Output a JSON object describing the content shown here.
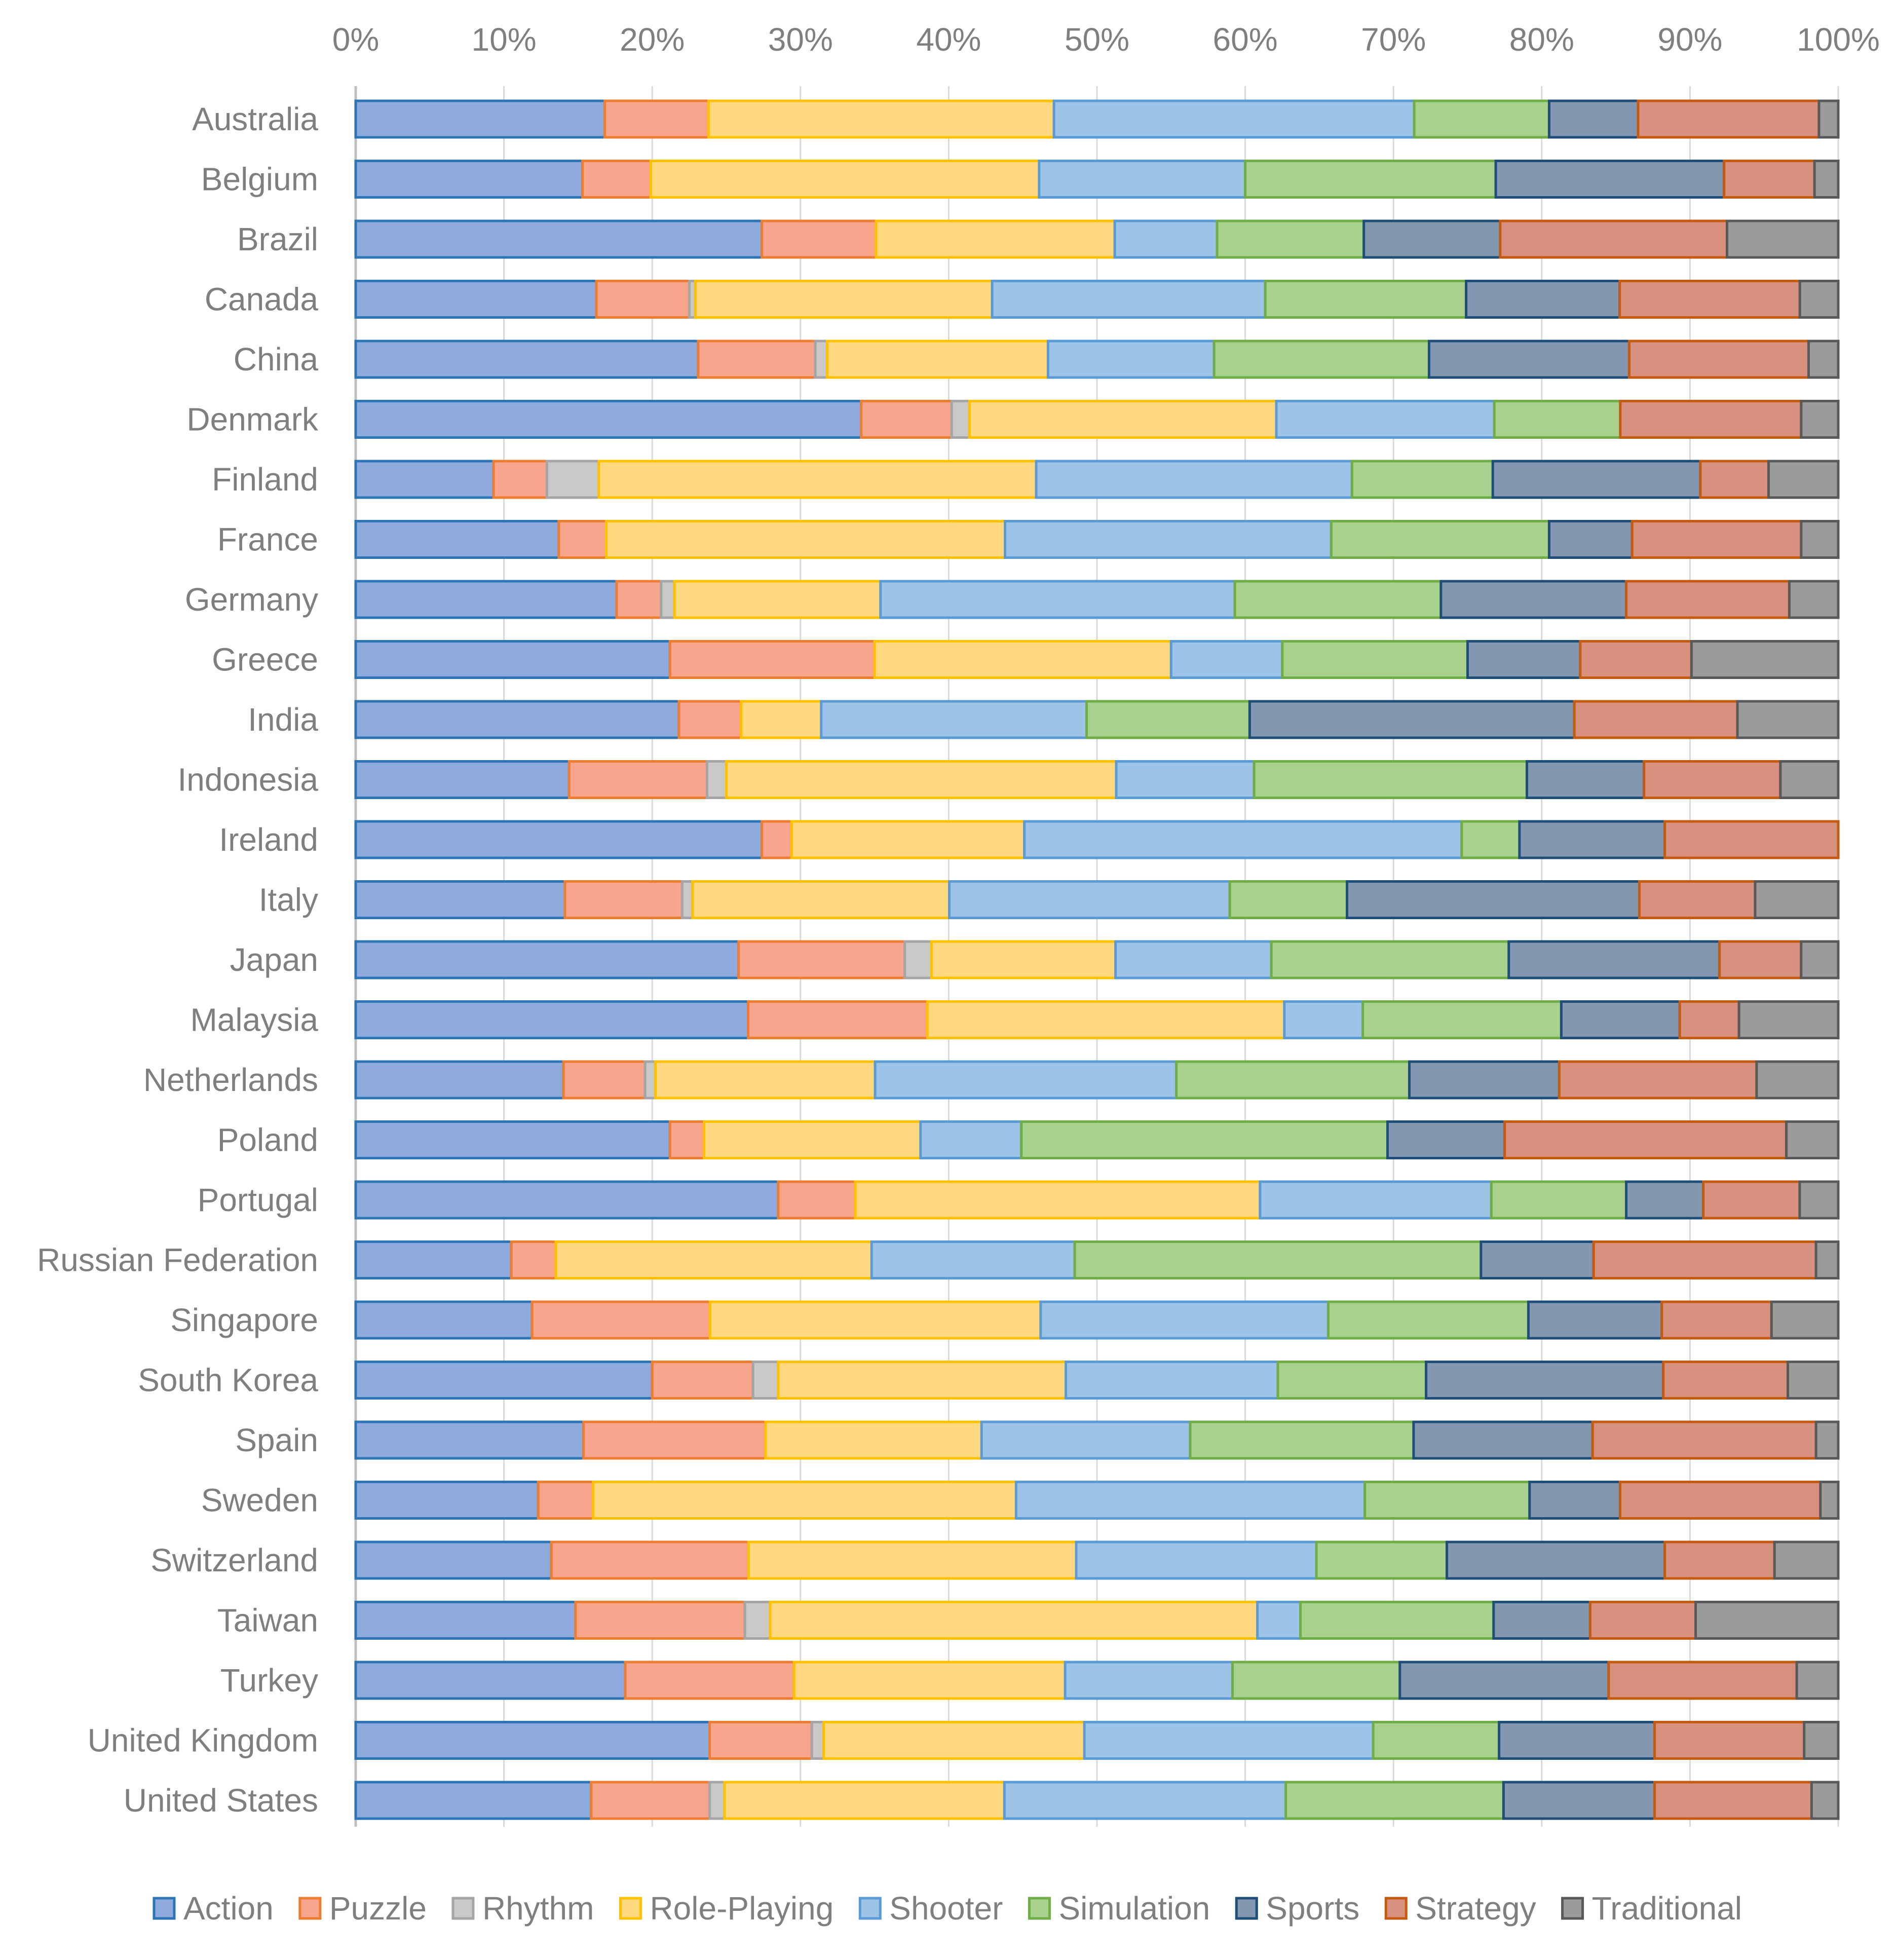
{
  "chart_data": {
    "type": "bar",
    "orientation": "horizontal",
    "stacking": "percent",
    "title": "",
    "xlabel": "",
    "ylabel": "",
    "xlim": [
      0,
      100
    ],
    "x_ticks": [
      "0%",
      "10%",
      "20%",
      "30%",
      "40%",
      "50%",
      "60%",
      "70%",
      "80%",
      "90%",
      "100%"
    ],
    "x_axis_position": "top",
    "grid": true,
    "legend_position": "bottom",
    "categories": [
      "Australia",
      "Belgium",
      "Brazil",
      "Canada",
      "China",
      "Denmark",
      "Finland",
      "France",
      "Germany",
      "Greece",
      "India",
      "Indonesia",
      "Ireland",
      "Italy",
      "Japan",
      "Malaysia",
      "Netherlands",
      "Poland",
      "Portugal",
      "Russian Federation",
      "Singapore",
      "South Korea",
      "Spain",
      "Sweden",
      "Switzerland",
      "Taiwan",
      "Turkey",
      "United Kingdom",
      "United States"
    ],
    "series": [
      {
        "name": "Action",
        "fill": "#8faadc",
        "stroke": "#2e75b6",
        "values": [
          16.8,
          15.3,
          27.4,
          16.3,
          23.1,
          34.1,
          9.3,
          13.7,
          17.6,
          21.2,
          21.8,
          14.4,
          27.4,
          14.1,
          25.8,
          26.5,
          14.0,
          21.2,
          28.5,
          10.5,
          11.9,
          20.0,
          15.4,
          12.3,
          13.2,
          14.8,
          18.2,
          23.9,
          15.9
        ]
      },
      {
        "name": "Puzzle",
        "fill": "#f8a58d",
        "stroke": "#ed7d31",
        "values": [
          7.0,
          4.6,
          7.7,
          6.3,
          7.9,
          6.1,
          3.6,
          3.2,
          3.0,
          13.8,
          4.2,
          9.3,
          2.0,
          7.9,
          11.2,
          12.1,
          5.5,
          2.3,
          5.2,
          3.0,
          12.0,
          6.8,
          12.3,
          3.7,
          13.3,
          11.4,
          11.4,
          6.9,
          8.0
        ]
      },
      {
        "name": "Rhythm",
        "fill": "#c9c9c9",
        "stroke": "#a5a5a5",
        "values": [
          0,
          0,
          0,
          0.4,
          0.8,
          1.2,
          3.5,
          0,
          0.9,
          0,
          0,
          1.3,
          0,
          0.7,
          1.8,
          0,
          0.7,
          0,
          0,
          0,
          0,
          1.7,
          0,
          0,
          0,
          1.7,
          0,
          0.8,
          1.0
        ]
      },
      {
        "name": "Role-Playing",
        "fill": "#ffd880",
        "stroke": "#ffc000",
        "values": [
          23.3,
          26.2,
          16.1,
          20.1,
          14.9,
          20.7,
          29.5,
          26.9,
          13.9,
          20.0,
          5.4,
          26.3,
          15.7,
          17.3,
          12.4,
          24.1,
          14.8,
          14.6,
          27.3,
          21.3,
          22.3,
          19.4,
          14.6,
          28.5,
          22.1,
          32.8,
          18.3,
          17.6,
          18.9
        ]
      },
      {
        "name": "Shooter",
        "fill": "#9dc3e6",
        "stroke": "#5b9bd5",
        "values": [
          24.3,
          13.9,
          6.9,
          18.5,
          11.2,
          14.7,
          21.3,
          22.0,
          23.9,
          7.5,
          17.9,
          9.3,
          29.5,
          18.9,
          10.5,
          5.3,
          20.3,
          6.8,
          15.6,
          13.7,
          19.4,
          14.3,
          14.1,
          23.5,
          16.2,
          2.9,
          11.3,
          19.5,
          19.0
        ]
      },
      {
        "name": "Simulation",
        "fill": "#a9d18e",
        "stroke": "#70ad47",
        "values": [
          9.1,
          16.9,
          9.9,
          13.6,
          14.5,
          8.5,
          9.5,
          14.7,
          13.9,
          12.5,
          11.0,
          18.4,
          3.9,
          7.9,
          16.0,
          13.4,
          15.7,
          24.7,
          9.1,
          27.4,
          13.5,
          10.0,
          15.1,
          11.1,
          8.8,
          13.0,
          11.3,
          8.5,
          14.7
        ]
      },
      {
        "name": "Sports",
        "fill": "#8497b0",
        "stroke": "#1f4e79",
        "values": [
          6.0,
          15.4,
          9.2,
          10.4,
          13.5,
          0,
          14.0,
          5.6,
          12.5,
          7.6,
          21.9,
          7.9,
          9.8,
          19.7,
          14.2,
          8.0,
          10.1,
          7.9,
          5.2,
          7.6,
          9.0,
          16.0,
          12.1,
          6.1,
          14.7,
          6.5,
          14.1,
          10.5,
          10.2
        ]
      },
      {
        "name": "Strategy",
        "fill": "#d8907f",
        "stroke": "#c55a11",
        "values": [
          12.2,
          6.1,
          15.3,
          12.2,
          12.1,
          12.2,
          4.6,
          11.4,
          11.0,
          7.5,
          11.0,
          9.2,
          11.7,
          7.8,
          5.5,
          4.0,
          13.3,
          19.0,
          6.5,
          15.0,
          7.4,
          8.4,
          15.1,
          13.5,
          7.4,
          7.1,
          12.7,
          10.1,
          10.6
        ]
      },
      {
        "name": "Traditional",
        "fill": "#9b9b9b",
        "stroke": "#595959",
        "values": [
          1.3,
          1.6,
          7.5,
          2.6,
          2.0,
          2.5,
          4.7,
          2.5,
          3.3,
          9.9,
          6.8,
          3.9,
          0,
          5.6,
          2.5,
          6.7,
          5.5,
          3.5,
          2.6,
          1.5,
          4.5,
          3.4,
          1.5,
          1.2,
          4.3,
          9.6,
          2.8,
          2.3,
          1.8
        ]
      }
    ]
  }
}
